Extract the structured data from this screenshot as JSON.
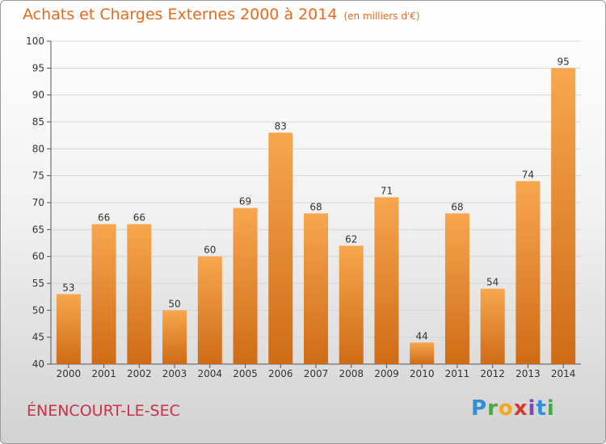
{
  "header": {
    "title": "Achats et Charges Externes 2000 à 2014",
    "unit": "(en milliers d'€)"
  },
  "footer": {
    "commune": "ÉNENCOURT-LE-SEC",
    "logo_letters": [
      "P",
      "r",
      "o",
      "x",
      "i",
      "t",
      "i"
    ],
    "logo_colors": [
      "#2f8fd8",
      "#3fae3a",
      "#f2a81d",
      "#d8382c",
      "#7a4bb3",
      "#2f8fd8",
      "#3fae3a"
    ]
  },
  "colors": {
    "bar_top": "#f7a74e",
    "bar_bottom": "#cf6b17",
    "title": "#e86a1c"
  },
  "chart_data": {
    "type": "bar",
    "categories": [
      "2000",
      "2001",
      "2002",
      "2003",
      "2004",
      "2005",
      "2006",
      "2007",
      "2008",
      "2009",
      "2010",
      "2011",
      "2012",
      "2013",
      "2014"
    ],
    "values": [
      53,
      66,
      66,
      50,
      60,
      69,
      83,
      68,
      62,
      71,
      44,
      68,
      54,
      74,
      95
    ],
    "ylim": [
      40,
      100
    ],
    "yticks": [
      40,
      45,
      50,
      55,
      60,
      65,
      70,
      75,
      80,
      85,
      90,
      95,
      100
    ],
    "grid": true,
    "title": "Achats et Charges Externes 2000 à 2014",
    "xlabel": "",
    "ylabel": ""
  }
}
